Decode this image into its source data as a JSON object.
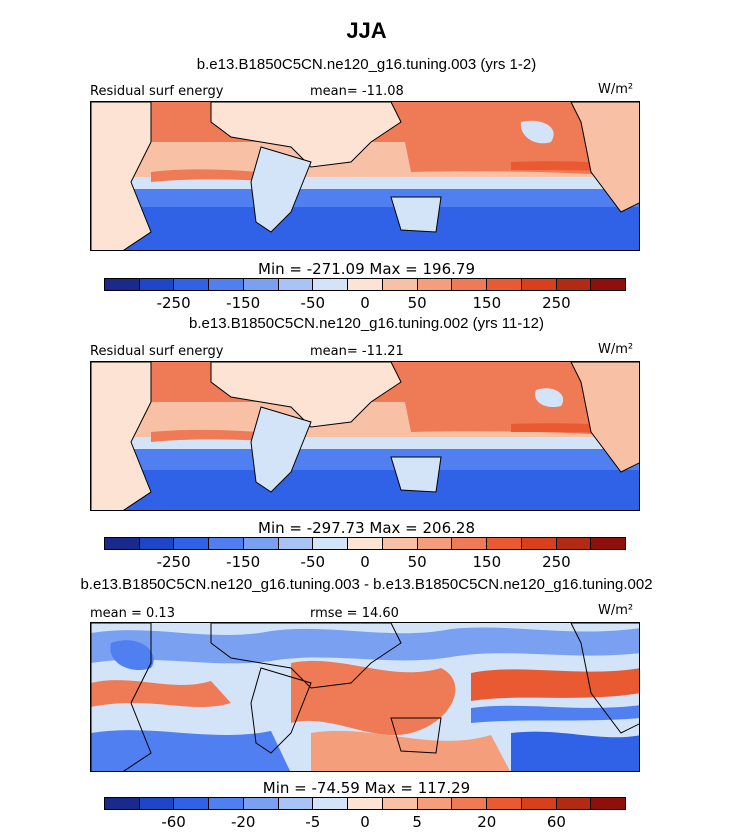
{
  "title": "JJA",
  "colors": {
    "scale": [
      "#1a2a8c",
      "#1f45c8",
      "#2f62e6",
      "#4f7ff0",
      "#7aa0f2",
      "#a8c3f5",
      "#d4e4f8",
      "#fde3d4",
      "#f8c0a4",
      "#f49e7c",
      "#ef7a56",
      "#e95a33",
      "#d8401d",
      "#b32a14",
      "#8e0f0c"
    ]
  },
  "panels": [
    {
      "subtitle": "b.e13.B1850C5CN.ne120_g16.tuning.003 (yrs 1-2)",
      "left_label": "Residual surf energy",
      "center_label": "mean= -11.08",
      "units": "W/m²",
      "minmax": "Min = -271.09 Max = 196.79",
      "ticks": [
        "-250",
        "-150",
        "-50",
        "0",
        "50",
        "150",
        "250"
      ]
    },
    {
      "subtitle": "b.e13.B1850C5CN.ne120_g16.tuning.002 (yrs 11-12)",
      "left_label": "Residual surf energy",
      "center_label": "mean= -11.21",
      "units": "W/m²",
      "minmax": "Min = -297.73 Max = 206.28",
      "ticks": [
        "-250",
        "-150",
        "-50",
        "0",
        "50",
        "150",
        "250"
      ]
    },
    {
      "subtitle": "b.e13.B1850C5CN.ne120_g16.tuning.003 - b.e13.B1850C5CN.ne120_g16.tuning.002",
      "left_label": "mean =    0.13",
      "center_label": "rmse =  14.60",
      "units": "W/m²",
      "minmax": "Min = -74.59 Max = 117.29",
      "ticks": [
        "-60",
        "-20",
        "-5",
        "0",
        "5",
        "20",
        "60"
      ]
    }
  ]
}
